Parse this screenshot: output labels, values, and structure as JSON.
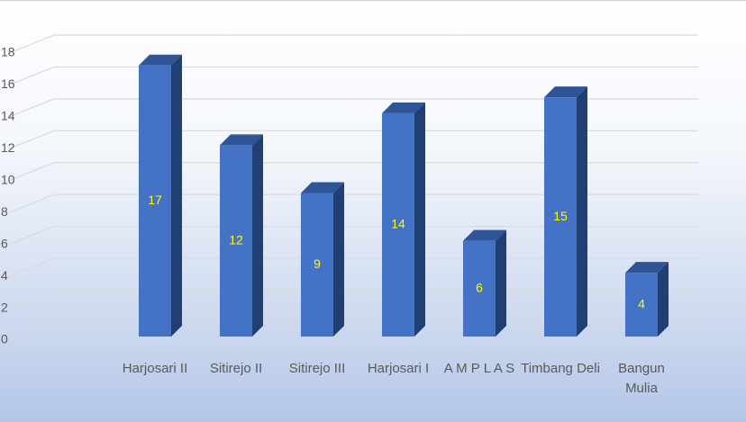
{
  "chart_data": {
    "type": "bar",
    "categories": [
      "Harjosari II",
      "Sitirejo II",
      "Sitirejo III",
      "Harjosari I",
      "A M P L A S",
      "Timbang Deli",
      "Bangun Mulia"
    ],
    "values": [
      17,
      12,
      9,
      14,
      6,
      15,
      4
    ],
    "color": "#4472c4",
    "ylim": [
      0,
      18
    ],
    "yticks": [
      0,
      2,
      4,
      6,
      8,
      10,
      12,
      14,
      16,
      18
    ],
    "grid": true
  }
}
